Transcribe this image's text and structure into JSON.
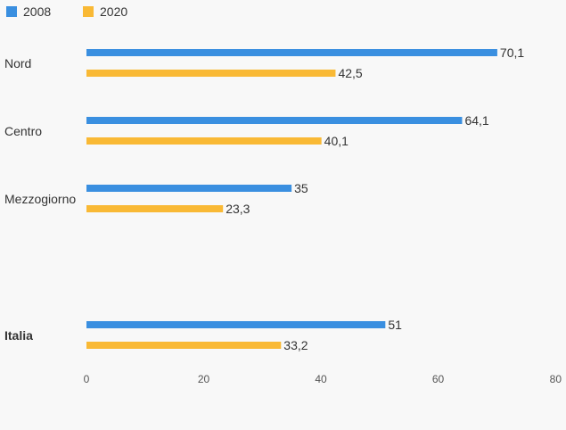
{
  "chart_data": {
    "type": "bar",
    "orientation": "horizontal",
    "title": "",
    "xlabel": "",
    "ylabel": "",
    "categories": [
      "Nord",
      "Centro",
      "Mezzogiorno",
      "Italia"
    ],
    "bold_categories": [
      "Italia"
    ],
    "series": [
      {
        "name": "2008",
        "color": "#3a8fe0",
        "values": [
          70.1,
          64.1,
          35,
          51
        ],
        "labels": [
          "70,1",
          "64,1",
          "35",
          "51"
        ]
      },
      {
        "name": "2020",
        "color": "#f9b935",
        "values": [
          42.5,
          40.1,
          23.3,
          33.2
        ],
        "labels": [
          "42,5",
          "40,1",
          "23,3",
          "33,2"
        ]
      }
    ],
    "xlim": [
      0,
      80
    ],
    "xticks": [
      0,
      20,
      40,
      60,
      80
    ],
    "grid": false,
    "legend_position": "top-left"
  }
}
